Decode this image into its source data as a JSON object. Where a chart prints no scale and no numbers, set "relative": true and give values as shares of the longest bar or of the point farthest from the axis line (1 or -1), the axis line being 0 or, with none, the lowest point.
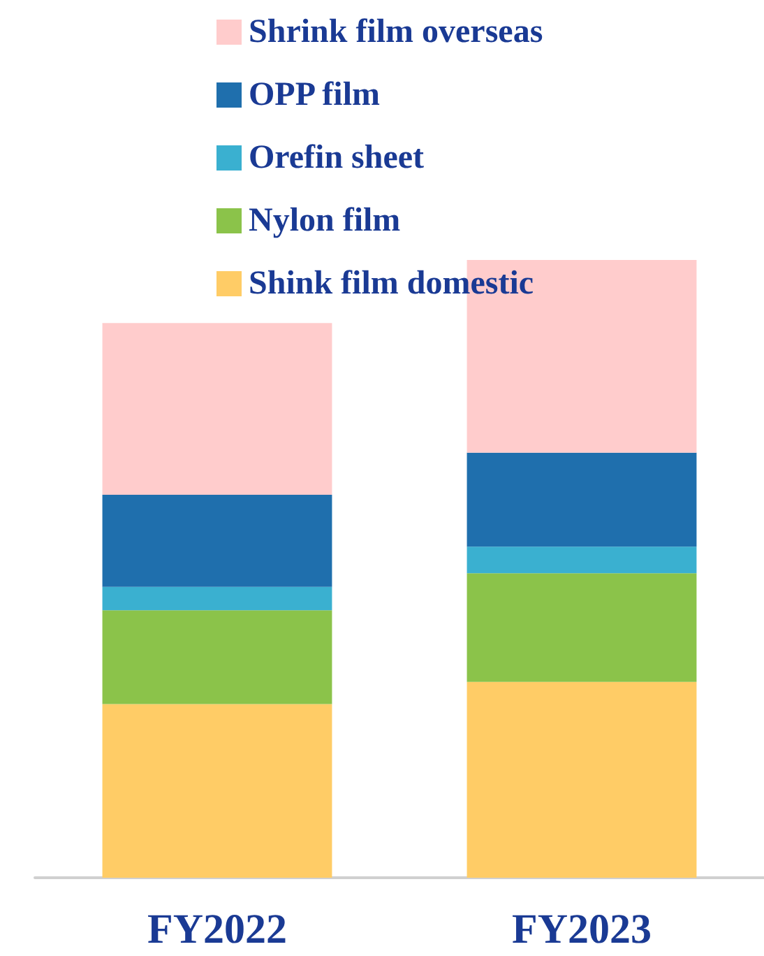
{
  "chart_data": {
    "type": "bar",
    "stacked": true,
    "relative": true,
    "categories": [
      "FY2022",
      "FY2023"
    ],
    "legend": "top",
    "series": [
      {
        "name": "Shink film domestic",
        "color": "#ffcc66",
        "values": [
          0.281,
          0.317
        ]
      },
      {
        "name": "Nylon film",
        "color": "#8bc34a",
        "values": [
          0.152,
          0.176
        ]
      },
      {
        "name": "Orefin sheet",
        "color": "#3ab0d0",
        "values": [
          0.038,
          0.043
        ]
      },
      {
        "name": "OPP film",
        "color": "#1f6fad",
        "values": [
          0.149,
          0.152
        ]
      },
      {
        "name": "Shrink film overseas",
        "color": "#ffcccc",
        "values": [
          0.278,
          0.312
        ]
      }
    ]
  }
}
